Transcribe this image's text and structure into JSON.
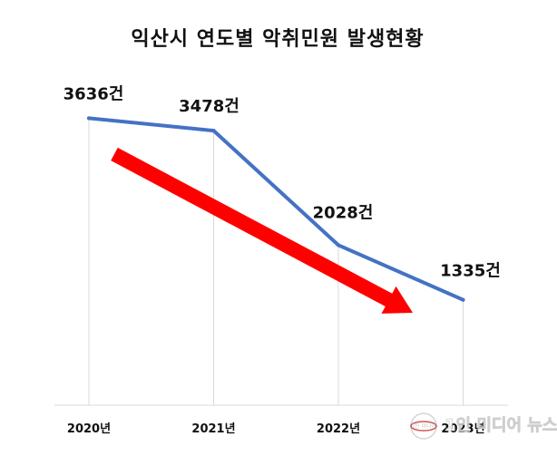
{
  "chart_data": {
    "type": "line",
    "title": "익산시 연도별 악취민원 발생현황",
    "categories": [
      "2020년",
      "2021년",
      "2022년",
      "2023년"
    ],
    "series": [
      {
        "values": [
          3636,
          3478,
          2028,
          1335
        ],
        "data_labels": [
          "3636건",
          "3478건",
          "2028건",
          "1335건"
        ]
      }
    ],
    "ylim": [
      0,
      4800
    ],
    "grid": "vertical",
    "legend": "none",
    "trend_arrow": "down"
  },
  "colors": {
    "series_line": "#4472C4",
    "trend_arrow": "#FF0000",
    "gridline": "#D9D9D9",
    "text": "#111111"
  },
  "watermark": {
    "logo_text": "1인 미디어",
    "brand": "1인 미디어 뉴스",
    "icon": "globe-logo-icon"
  }
}
